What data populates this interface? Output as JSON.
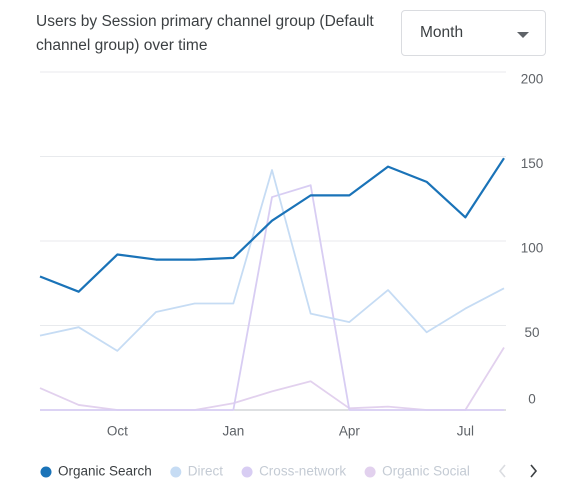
{
  "dropdown": {
    "value": "Month"
  },
  "chart_data": {
    "type": "line",
    "title": "Users by Session primary channel group (Default channel group) over time",
    "categories": [
      null,
      null,
      "Oct",
      null,
      null,
      "Jan",
      null,
      null,
      "Apr",
      null,
      null,
      "Jul",
      null
    ],
    "series": [
      {
        "name": "Organic Search",
        "color": "#1a73b8",
        "values": [
          79,
          70,
          92,
          89,
          89,
          90,
          112,
          127,
          127,
          144,
          135,
          114,
          149
        ]
      },
      {
        "name": "Direct",
        "color": "#c6dcf4",
        "values": [
          44,
          49,
          35,
          58,
          63,
          63,
          142,
          57,
          52,
          71,
          46,
          60,
          72
        ]
      },
      {
        "name": "Cross-network",
        "color": "#d8cdf3",
        "values": [
          0,
          0,
          0,
          0,
          0,
          0,
          126,
          133,
          0,
          0,
          0,
          0,
          0
        ]
      },
      {
        "name": "Organic Social",
        "color": "#e2d1ee",
        "values": [
          13,
          3,
          0,
          0,
          0,
          4,
          11,
          17,
          1,
          2,
          0,
          0,
          37
        ]
      }
    ],
    "ylim": [
      0,
      200
    ],
    "yticks": [
      0,
      50,
      100,
      150,
      200
    ],
    "grid": true
  }
}
